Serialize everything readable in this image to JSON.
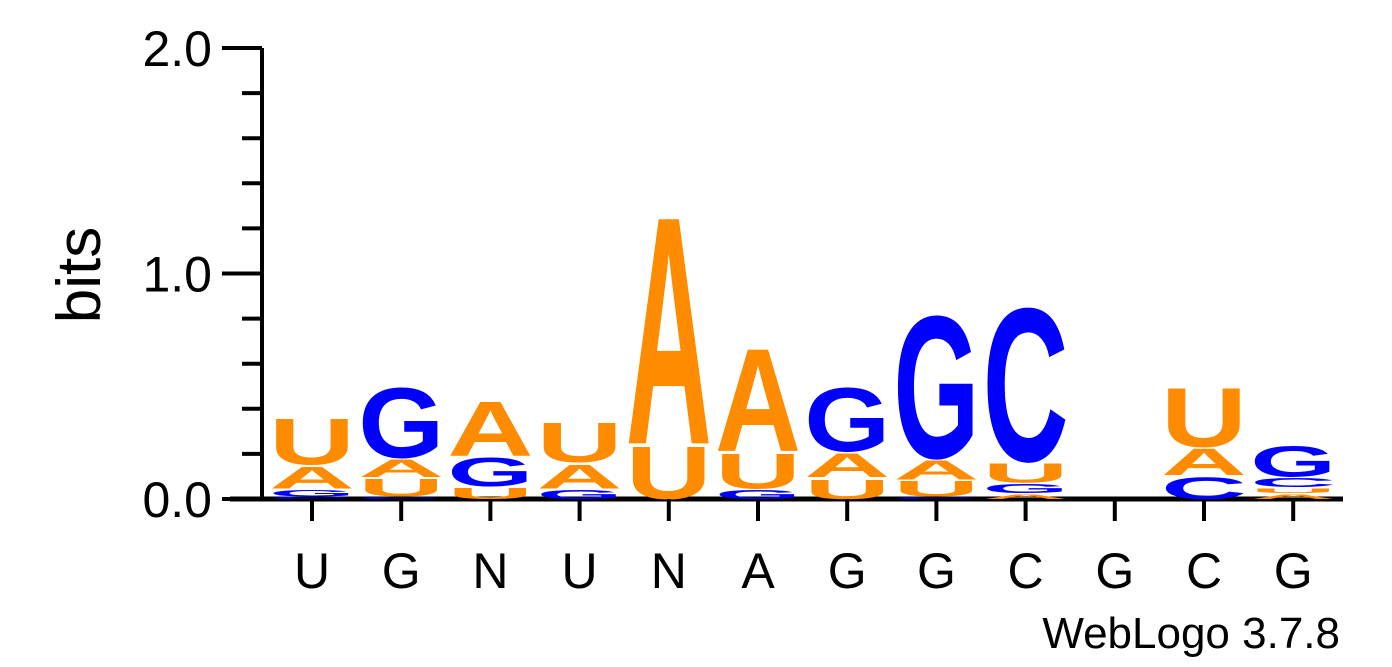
{
  "chart_data": {
    "type": "sequence-logo",
    "ylabel": "bits",
    "ylim": [
      0,
      2
    ],
    "yticks": [
      "0.0",
      "1.0",
      "2.0"
    ],
    "credit": "WebLogo 3.7.8",
    "colors": {
      "A": "#ff8c00",
      "U": "#ff8c00",
      "G": "#0000ff",
      "C": "#0000ff"
    },
    "positions": [
      {
        "consensus": "U",
        "stack": [
          {
            "letter": "C",
            "bits": 0.01
          },
          {
            "letter": "G",
            "bits": 0.03
          },
          {
            "letter": "A",
            "bits": 0.1
          },
          {
            "letter": "U",
            "bits": 0.21
          }
        ]
      },
      {
        "consensus": "G",
        "stack": [
          {
            "letter": "C",
            "bits": 0.01
          },
          {
            "letter": "U",
            "bits": 0.08
          },
          {
            "letter": "A",
            "bits": 0.08
          },
          {
            "letter": "G",
            "bits": 0.32
          }
        ]
      },
      {
        "consensus": "N",
        "stack": [
          {
            "letter": "U",
            "bits": 0.05
          },
          {
            "letter": "G",
            "bits": 0.13
          },
          {
            "letter": "A",
            "bits": 0.25
          }
        ]
      },
      {
        "consensus": "U",
        "stack": [
          {
            "letter": "G",
            "bits": 0.04
          },
          {
            "letter": "A",
            "bits": 0.11
          },
          {
            "letter": "U",
            "bits": 0.18
          }
        ]
      },
      {
        "consensus": "N",
        "stack": [
          {
            "letter": "U",
            "bits": 0.24
          },
          {
            "letter": "A",
            "bits": 1.04
          }
        ]
      },
      {
        "consensus": "A",
        "stack": [
          {
            "letter": "G",
            "bits": 0.04
          },
          {
            "letter": "U",
            "bits": 0.16
          },
          {
            "letter": "A",
            "bits": 0.47
          }
        ]
      },
      {
        "consensus": "G",
        "stack": [
          {
            "letter": "U",
            "bits": 0.09
          },
          {
            "letter": "A",
            "bits": 0.11
          },
          {
            "letter": "G",
            "bits": 0.29
          }
        ]
      },
      {
        "consensus": "G",
        "stack": [
          {
            "letter": "C",
            "bits": 0.01
          },
          {
            "letter": "U",
            "bits": 0.07
          },
          {
            "letter": "A",
            "bits": 0.09
          },
          {
            "letter": "G",
            "bits": 0.65
          }
        ]
      },
      {
        "consensus": "C",
        "stack": [
          {
            "letter": "A",
            "bits": 0.02
          },
          {
            "letter": "G",
            "bits": 0.04
          },
          {
            "letter": "U",
            "bits": 0.09
          },
          {
            "letter": "C",
            "bits": 0.7
          }
        ]
      },
      {
        "consensus": "G",
        "stack": []
      },
      {
        "consensus": "C",
        "stack": [
          {
            "letter": "C",
            "bits": 0.1
          },
          {
            "letter": "A",
            "bits": 0.12
          },
          {
            "letter": "U",
            "bits": 0.27
          }
        ]
      },
      {
        "consensus": "G",
        "stack": [
          {
            "letter": "A",
            "bits": 0.02
          },
          {
            "letter": "U",
            "bits": 0.02
          },
          {
            "letter": "C",
            "bits": 0.04
          },
          {
            "letter": "G",
            "bits": 0.14
          }
        ]
      }
    ]
  }
}
